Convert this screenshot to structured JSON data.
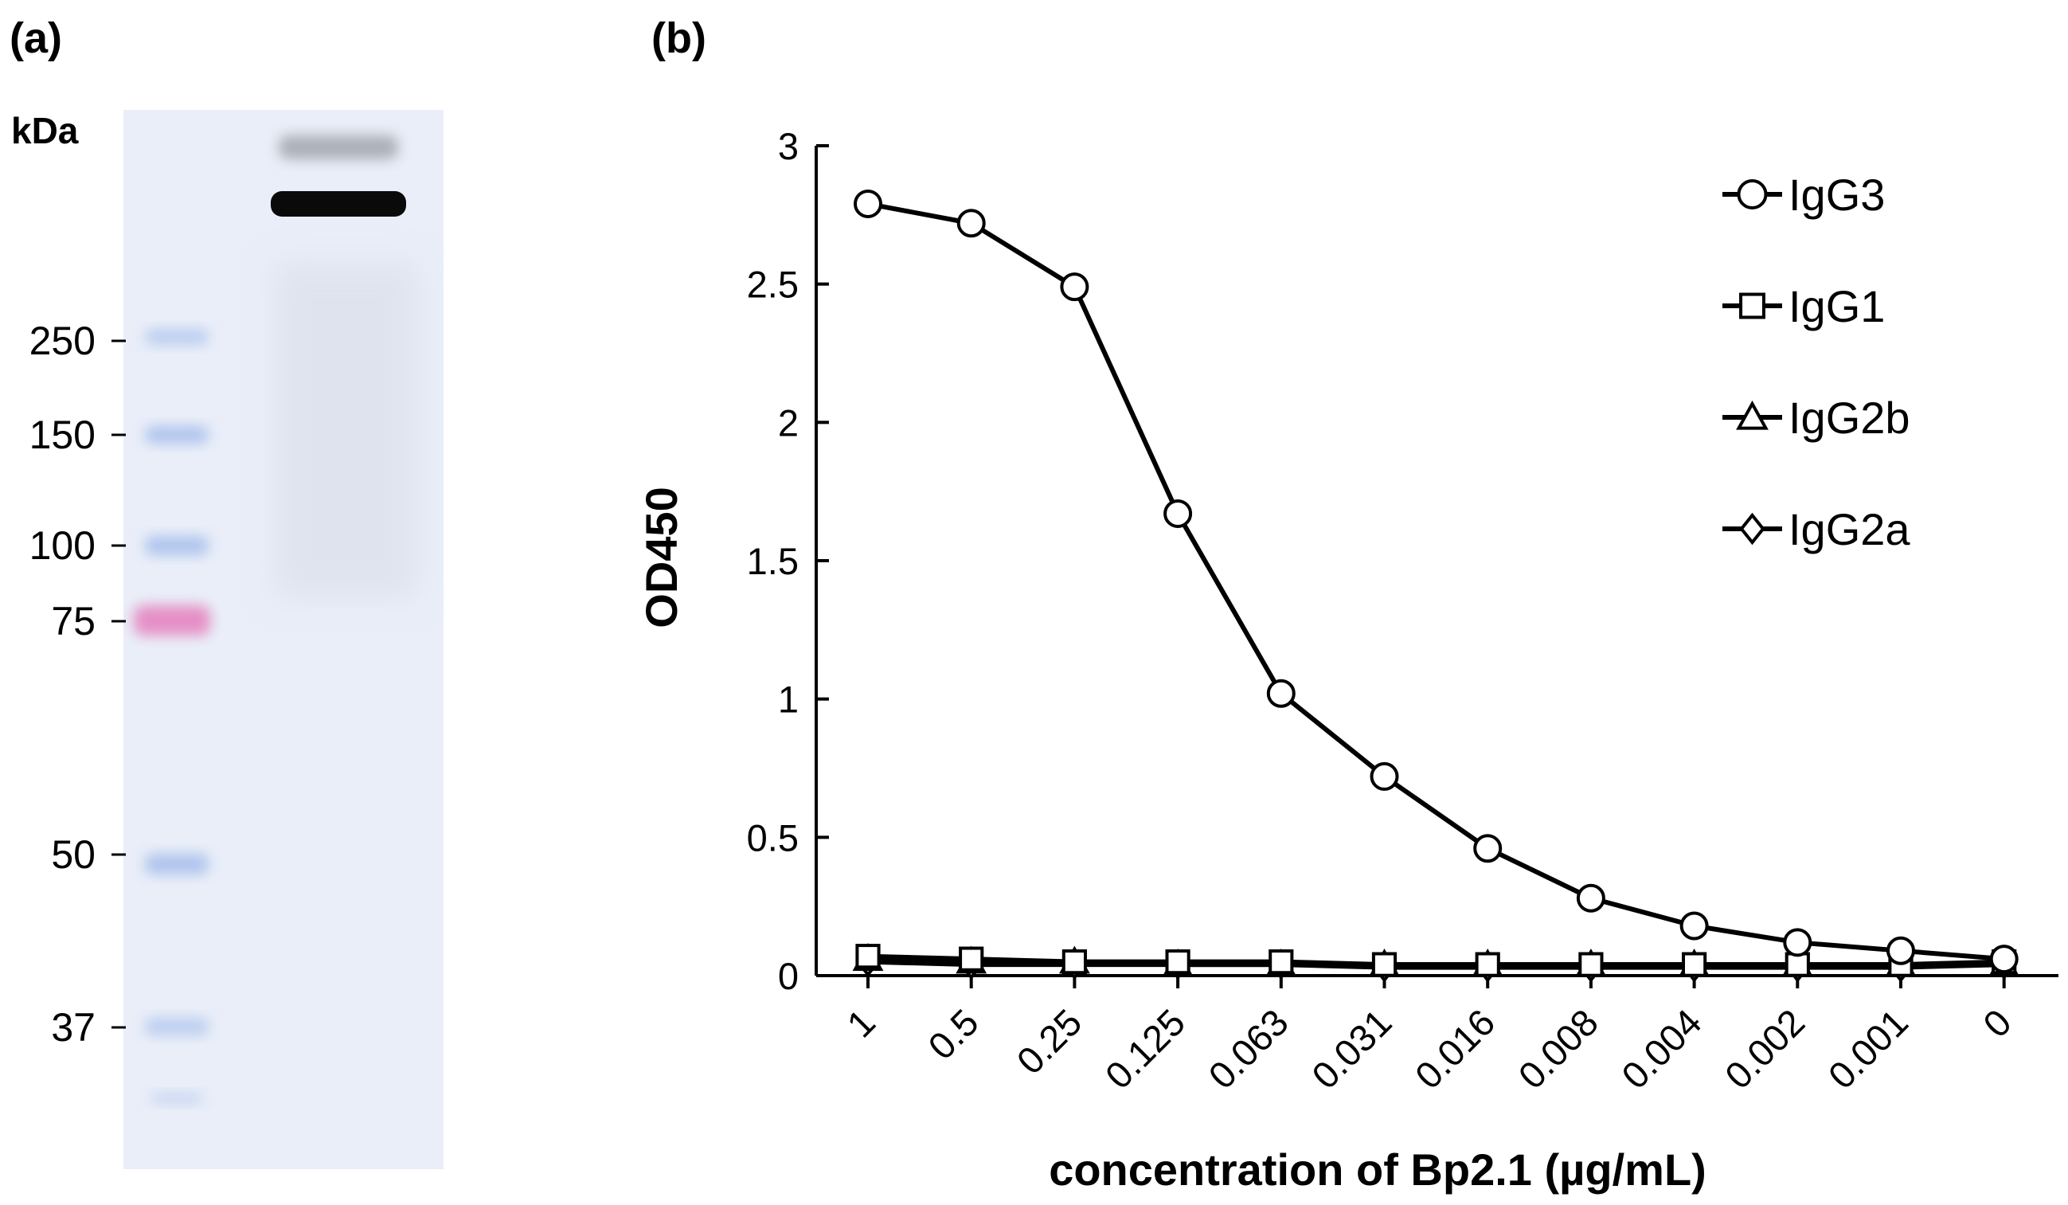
{
  "panel_a": {
    "label": "(a)",
    "unit_label": "kDa",
    "markers": [
      "250",
      "150",
      "100",
      "75",
      "50",
      "37"
    ],
    "marker_kda": [
      250,
      150,
      100,
      75,
      50,
      37
    ],
    "colors": {
      "membrane": "#e9eef8",
      "ladder_blue": "#a9c0ec",
      "ladder_pink": "#e58bc4",
      "band": "#0a0a0a"
    }
  },
  "panel_b": {
    "label": "(b)"
  },
  "chart_data": {
    "type": "line",
    "title": "",
    "xlabel": "concentration of Bp2.1 (µg/mL)",
    "ylabel": "OD450",
    "categories": [
      "1",
      "0.5",
      "0.25",
      "0.125",
      "0.063",
      "0.031",
      "0.016",
      "0.008",
      "0.004",
      "0.002",
      "0.001",
      "0"
    ],
    "ylim": [
      0,
      3
    ],
    "yticks": [
      "0",
      "0.5",
      "1",
      "1.5",
      "2",
      "2.5",
      "3"
    ],
    "ytick_values": [
      0,
      0.5,
      1,
      1.5,
      2,
      2.5,
      3
    ],
    "legend_position": "top-right",
    "series": [
      {
        "name": "IgG3",
        "marker": "circle",
        "values": [
          2.79,
          2.72,
          2.49,
          1.67,
          1.02,
          0.72,
          0.46,
          0.28,
          0.18,
          0.12,
          0.09,
          0.06
        ]
      },
      {
        "name": "IgG1",
        "marker": "square",
        "values": [
          0.07,
          0.06,
          0.05,
          0.05,
          0.05,
          0.04,
          0.04,
          0.04,
          0.04,
          0.04,
          0.04,
          0.05
        ]
      },
      {
        "name": "IgG2b",
        "marker": "triangle",
        "values": [
          0.06,
          0.05,
          0.05,
          0.04,
          0.04,
          0.04,
          0.04,
          0.04,
          0.04,
          0.04,
          0.04,
          0.04
        ]
      },
      {
        "name": "IgG2a",
        "marker": "diamond",
        "values": [
          0.05,
          0.04,
          0.04,
          0.04,
          0.04,
          0.03,
          0.03,
          0.03,
          0.03,
          0.03,
          0.03,
          0.04
        ]
      }
    ]
  }
}
